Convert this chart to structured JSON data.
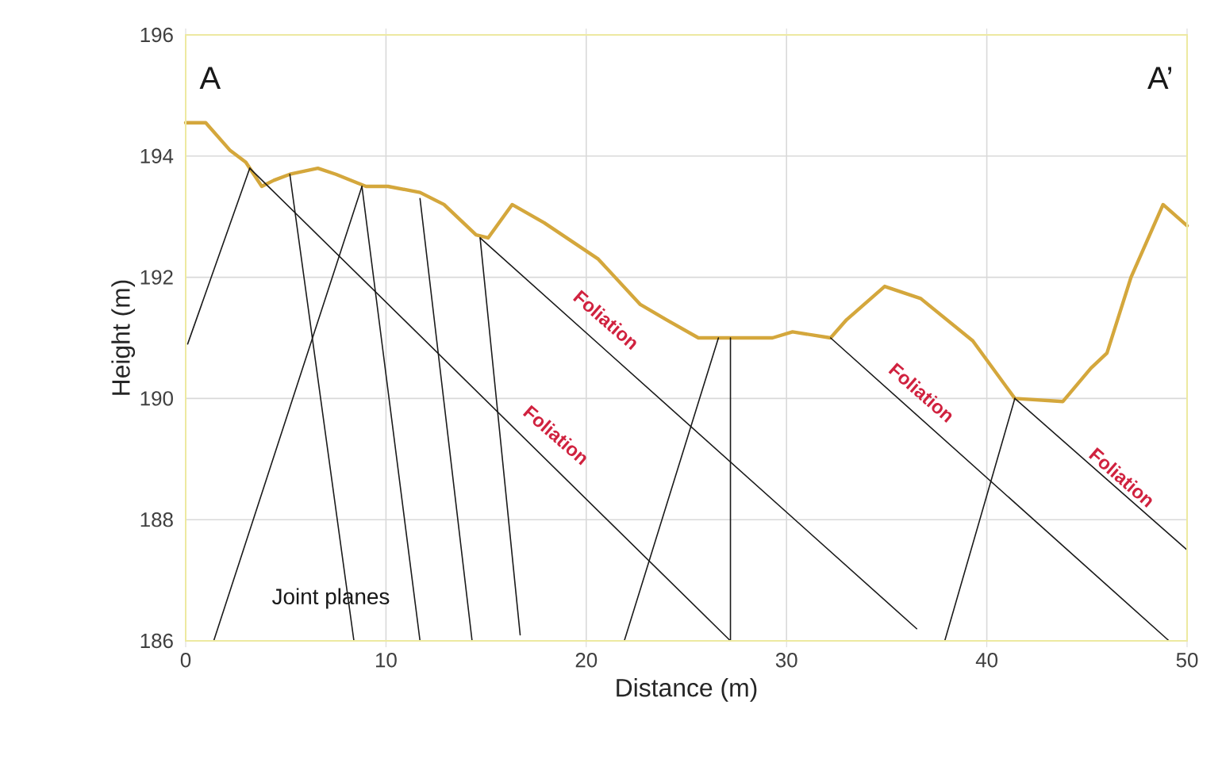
{
  "chart_data": {
    "type": "line",
    "xlabel": "Distance (m)",
    "ylabel": "Height (m)",
    "xlim": [
      0,
      50
    ],
    "ylim": [
      186,
      196
    ],
    "xticks": [
      0,
      10,
      20,
      30,
      40,
      50
    ],
    "yticks": [
      186,
      188,
      190,
      192,
      194,
      196
    ],
    "grid": true,
    "marker": "none",
    "line_style": "solid",
    "series": [
      {
        "color": "#d4a73c",
        "x": [
          0,
          1.0,
          2.2,
          3.0,
          3.8,
          4.4,
          5.2,
          6.6,
          7.5,
          9.0,
          10.1,
          11.7,
          12.9,
          14.5,
          15.1,
          16.3,
          17.9,
          20.6,
          22.7,
          24.0,
          25.6,
          26.6,
          29.3,
          30.3,
          32.2,
          33.0,
          34.9,
          36.7,
          39.3,
          41.4,
          43.8,
          45.2,
          46.0,
          47.2,
          48.8,
          50.0
        ],
        "values": [
          194.55,
          194.55,
          194.1,
          193.9,
          193.5,
          193.6,
          193.7,
          193.8,
          193.7,
          193.5,
          193.5,
          193.4,
          193.2,
          192.7,
          192.65,
          193.2,
          192.9,
          192.3,
          191.55,
          191.3,
          191.0,
          191.0,
          191.0,
          191.1,
          191.0,
          191.3,
          191.85,
          191.65,
          190.95,
          190.0,
          189.95,
          190.5,
          190.75,
          192.0,
          193.2,
          192.85
        ]
      },
      {
        "color": "#1a1a1a",
        "x": [
          0.1,
          3.2
        ],
        "values": [
          190.9,
          193.8
        ]
      },
      {
        "color": "#1a1a1a",
        "x": [
          5.2,
          8.4
        ],
        "values": [
          193.7,
          186.0
        ]
      },
      {
        "color": "#1a1a1a",
        "x": [
          1.4,
          8.8
        ],
        "values": [
          186.0,
          193.5
        ]
      },
      {
        "color": "#1a1a1a",
        "x": [
          8.8,
          11.7
        ],
        "values": [
          193.5,
          186.0
        ]
      },
      {
        "color": "#1a1a1a",
        "x": [
          11.7,
          14.3
        ],
        "values": [
          193.3,
          186.0
        ]
      },
      {
        "color": "#1a1a1a",
        "x": [
          14.7,
          16.7
        ],
        "values": [
          192.65,
          186.1
        ]
      },
      {
        "color": "#1a1a1a",
        "x": [
          21.9,
          26.6
        ],
        "values": [
          186.0,
          191.0
        ]
      },
      {
        "color": "#1a1a1a",
        "x": [
          27.2,
          27.2
        ],
        "values": [
          191.0,
          186.0
        ]
      },
      {
        "color": "#1a1a1a",
        "x": [
          37.9,
          41.4
        ],
        "values": [
          186.0,
          190.0
        ]
      },
      {
        "color": "#1a1a1a",
        "x": [
          3.2,
          27.2
        ],
        "values": [
          193.8,
          186.0
        ]
      },
      {
        "color": "#1a1a1a",
        "x": [
          14.7,
          36.5
        ],
        "values": [
          192.65,
          186.2
        ]
      },
      {
        "color": "#1a1a1a",
        "x": [
          32.2,
          49.1
        ],
        "values": [
          191.0,
          186.0
        ]
      },
      {
        "color": "#1a1a1a",
        "x": [
          41.4,
          50.0
        ],
        "values": [
          190.0,
          187.5
        ]
      }
    ],
    "annotations": [
      "A",
      "A’",
      "Foliation",
      "Foliation",
      "Foliation",
      "Foliation",
      "Joint planes"
    ]
  }
}
